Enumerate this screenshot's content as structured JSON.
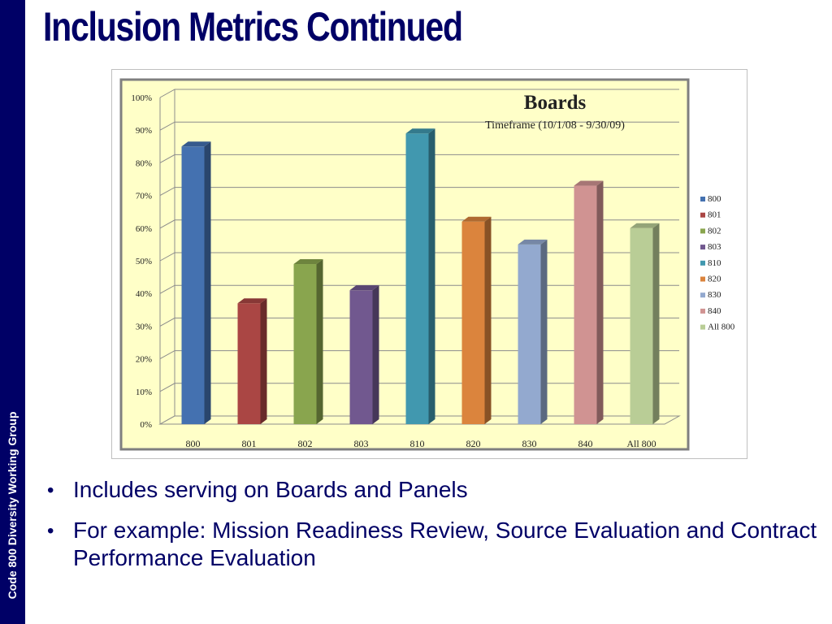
{
  "slide": {
    "title": "Inclusion Metrics Continued",
    "side_label": "Code 800 Diversity Working Group",
    "bullets": [
      "Includes serving on Boards and Panels",
      "For example: Mission Readiness Review, Source Evaluation and Contract Performance Evaluation"
    ]
  },
  "colors": {
    "sidebar": "#000066",
    "title": "#000066",
    "plot_background": "#ffffc8",
    "chart_border": "#7f7f7f"
  },
  "chart_data": {
    "type": "bar",
    "title": "Boards",
    "subtitle": "Timeframe (10/1/08 - 9/30/09)",
    "categories": [
      "800",
      "801",
      "802",
      "803",
      "810",
      "820",
      "830",
      "840",
      "All 800"
    ],
    "values": [
      85,
      37,
      49,
      41,
      89,
      62,
      55,
      73,
      60
    ],
    "colors": [
      "#4471b0",
      "#aa4644",
      "#89a54e",
      "#71588f",
      "#4198af",
      "#db843d",
      "#93a9cf",
      "#d09392",
      "#b9cd96"
    ],
    "legend": [
      "800",
      "801",
      "802",
      "803",
      "810",
      "820",
      "830",
      "840",
      "All 800"
    ],
    "legend_position": "right",
    "y_ticks": [
      "0%",
      "10%",
      "20%",
      "30%",
      "40%",
      "50%",
      "60%",
      "70%",
      "80%",
      "90%",
      "100%"
    ],
    "ylim": [
      0,
      100
    ],
    "grid": true,
    "style": "3d-column"
  }
}
